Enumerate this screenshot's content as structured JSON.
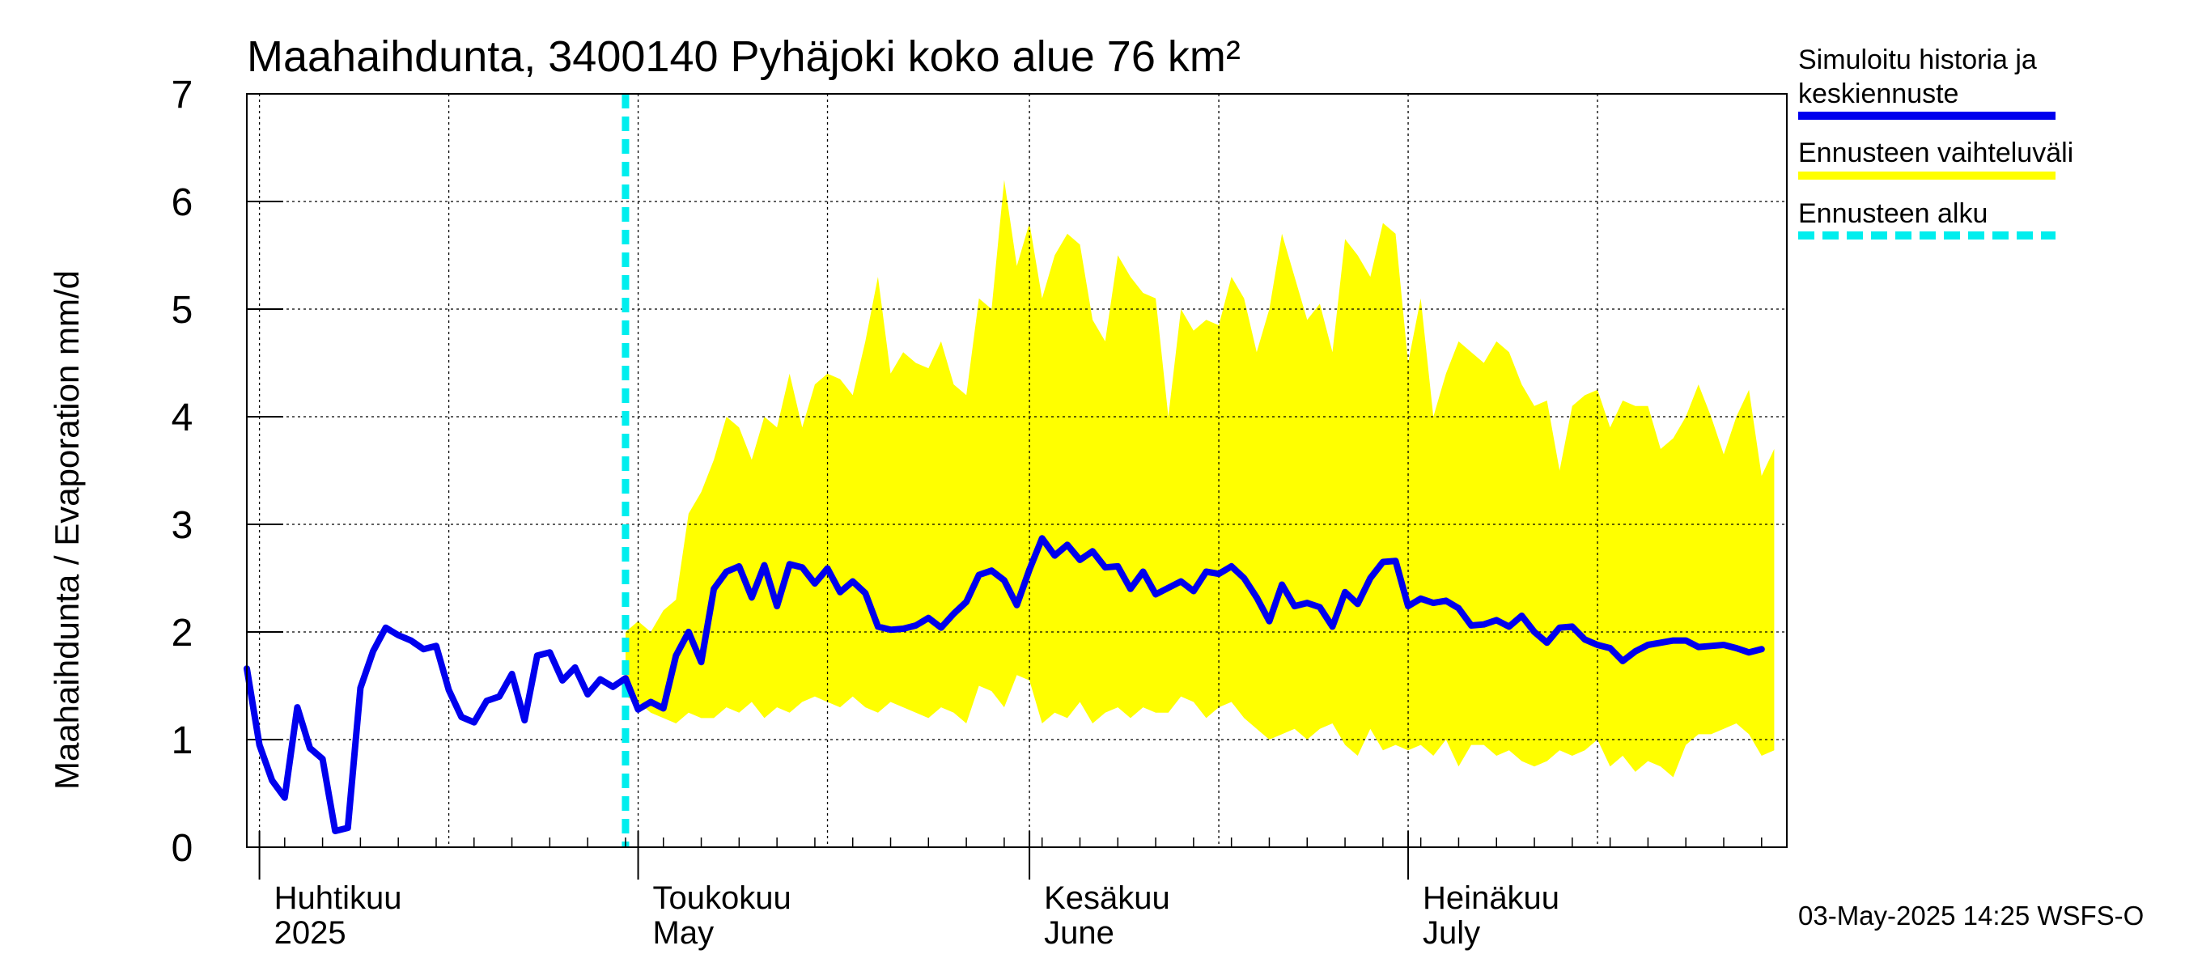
{
  "chart_data": {
    "type": "line",
    "title": "Maahaihdunta, 3400140 Pyhäjoki koko alue 76 km²",
    "ylabel": "Maahaihdunta / Evaporation   mm/d",
    "xlabel": "",
    "ylim": [
      0,
      7
    ],
    "yticks": [
      "0",
      "1",
      "2",
      "3",
      "4",
      "5",
      "6",
      "7"
    ],
    "x_start": "2025-03-31",
    "x_end": "2025-07-31",
    "grid": true,
    "legend_position": "right",
    "month_labels": [
      {
        "fi": "Huhtikuu",
        "en": "2025",
        "date": "2025-04-01"
      },
      {
        "fi": "Toukokuu",
        "en": "May",
        "date": "2025-05-01"
      },
      {
        "fi": "Kesäkuu",
        "en": "June",
        "date": "2025-06-01"
      },
      {
        "fi": "Heinäkuu",
        "en": "July",
        "date": "2025-07-01"
      }
    ],
    "forecast_start": "2025-04-30",
    "series": [
      {
        "name": "Simuloitu historia ja keskiennuste",
        "color": "#0000ee",
        "start_date": "2025-03-31",
        "values": [
          1.66,
          0.95,
          0.62,
          0.46,
          1.3,
          0.92,
          0.82,
          0.15,
          0.18,
          1.48,
          1.82,
          2.04,
          1.97,
          1.92,
          1.84,
          1.87,
          1.46,
          1.21,
          1.16,
          1.36,
          1.4,
          1.61,
          1.18,
          1.78,
          1.81,
          1.55,
          1.67,
          1.42,
          1.56,
          1.49,
          1.57,
          1.28,
          1.35,
          1.29,
          1.78,
          2.0,
          1.72,
          2.4,
          2.56,
          2.61,
          2.32,
          2.62,
          2.24,
          2.63,
          2.6,
          2.45,
          2.59,
          2.37,
          2.47,
          2.36,
          2.05,
          2.02,
          2.03,
          2.06,
          2.13,
          2.04,
          2.17,
          2.28,
          2.53,
          2.57,
          2.48,
          2.25,
          2.58,
          2.87,
          2.71,
          2.81,
          2.67,
          2.75,
          2.6,
          2.61,
          2.4,
          2.56,
          2.35,
          2.41,
          2.47,
          2.38,
          2.56,
          2.54,
          2.61,
          2.5,
          2.32,
          2.1,
          2.44,
          2.24,
          2.27,
          2.23,
          2.05,
          2.37,
          2.26,
          2.5,
          2.65,
          2.66,
          2.24,
          2.31,
          2.27,
          2.29,
          2.22,
          2.06,
          2.07,
          2.11,
          2.05,
          2.15,
          2.0,
          1.9,
          2.04,
          2.05,
          1.93,
          1.88,
          1.85,
          1.73,
          1.82,
          1.88,
          1.9,
          1.92,
          1.92,
          1.86,
          1.87,
          1.88,
          1.85,
          1.81,
          1.84
        ]
      }
    ],
    "band": {
      "name": "Ennusteen vaihteluväli",
      "color": "#ffff00",
      "start_date": "2025-04-30",
      "upper": [
        2.0,
        2.1,
        2.0,
        2.2,
        2.3,
        3.1,
        3.3,
        3.6,
        4.0,
        3.9,
        3.6,
        4.0,
        3.9,
        4.4,
        3.9,
        4.3,
        4.4,
        4.35,
        4.2,
        4.7,
        5.3,
        4.4,
        4.6,
        4.5,
        4.45,
        4.7,
        4.3,
        4.2,
        5.1,
        5.0,
        6.2,
        5.4,
        5.8,
        5.1,
        5.5,
        5.7,
        5.6,
        4.9,
        4.7,
        5.5,
        5.3,
        5.15,
        5.1,
        4.0,
        5.0,
        4.8,
        4.9,
        4.85,
        5.3,
        5.1,
        4.6,
        5.0,
        5.7,
        5.3,
        4.9,
        5.05,
        4.6,
        5.65,
        5.5,
        5.3,
        5.8,
        5.7,
        4.5,
        5.1,
        4.0,
        4.4,
        4.7,
        4.6,
        4.5,
        4.7,
        4.6,
        4.3,
        4.1,
        4.15,
        3.5,
        4.1,
        4.2,
        4.25,
        3.9,
        4.15,
        4.1,
        4.1,
        3.7,
        3.8,
        4.0,
        4.3,
        4.0,
        3.65,
        4.0,
        4.25,
        3.45,
        3.7
      ],
      "lower": [
        1.4,
        1.35,
        1.25,
        1.2,
        1.15,
        1.25,
        1.2,
        1.2,
        1.3,
        1.25,
        1.35,
        1.2,
        1.3,
        1.25,
        1.35,
        1.4,
        1.35,
        1.3,
        1.4,
        1.3,
        1.25,
        1.35,
        1.3,
        1.25,
        1.2,
        1.3,
        1.25,
        1.15,
        1.5,
        1.45,
        1.3,
        1.6,
        1.55,
        1.15,
        1.25,
        1.2,
        1.35,
        1.15,
        1.25,
        1.3,
        1.2,
        1.3,
        1.25,
        1.25,
        1.4,
        1.35,
        1.2,
        1.3,
        1.35,
        1.2,
        1.1,
        1.0,
        1.05,
        1.1,
        1.0,
        1.1,
        1.15,
        0.95,
        0.85,
        1.1,
        0.9,
        0.95,
        0.9,
        0.95,
        0.85,
        1.0,
        0.75,
        0.95,
        0.95,
        0.85,
        0.9,
        0.8,
        0.75,
        0.8,
        0.9,
        0.85,
        0.9,
        1.0,
        0.75,
        0.85,
        0.7,
        0.8,
        0.75,
        0.65,
        0.95,
        1.05,
        1.05,
        1.1,
        1.15,
        1.05,
        0.85,
        0.9
      ]
    },
    "forecast_marker": {
      "name": "Ennusteen alku",
      "color": "#00eeee"
    }
  },
  "legend": [
    {
      "label_lines": [
        "Simuloitu historia ja",
        "keskiennuste"
      ],
      "color": "#0000ee",
      "style": "solid"
    },
    {
      "label_lines": [
        "Ennusteen vaihteluväli"
      ],
      "color": "#ffff00",
      "style": "solid"
    },
    {
      "label_lines": [
        "Ennusteen alku"
      ],
      "color": "#00eeee",
      "style": "dashed"
    }
  ],
  "footer": "03-May-2025 14:25 WSFS-O"
}
